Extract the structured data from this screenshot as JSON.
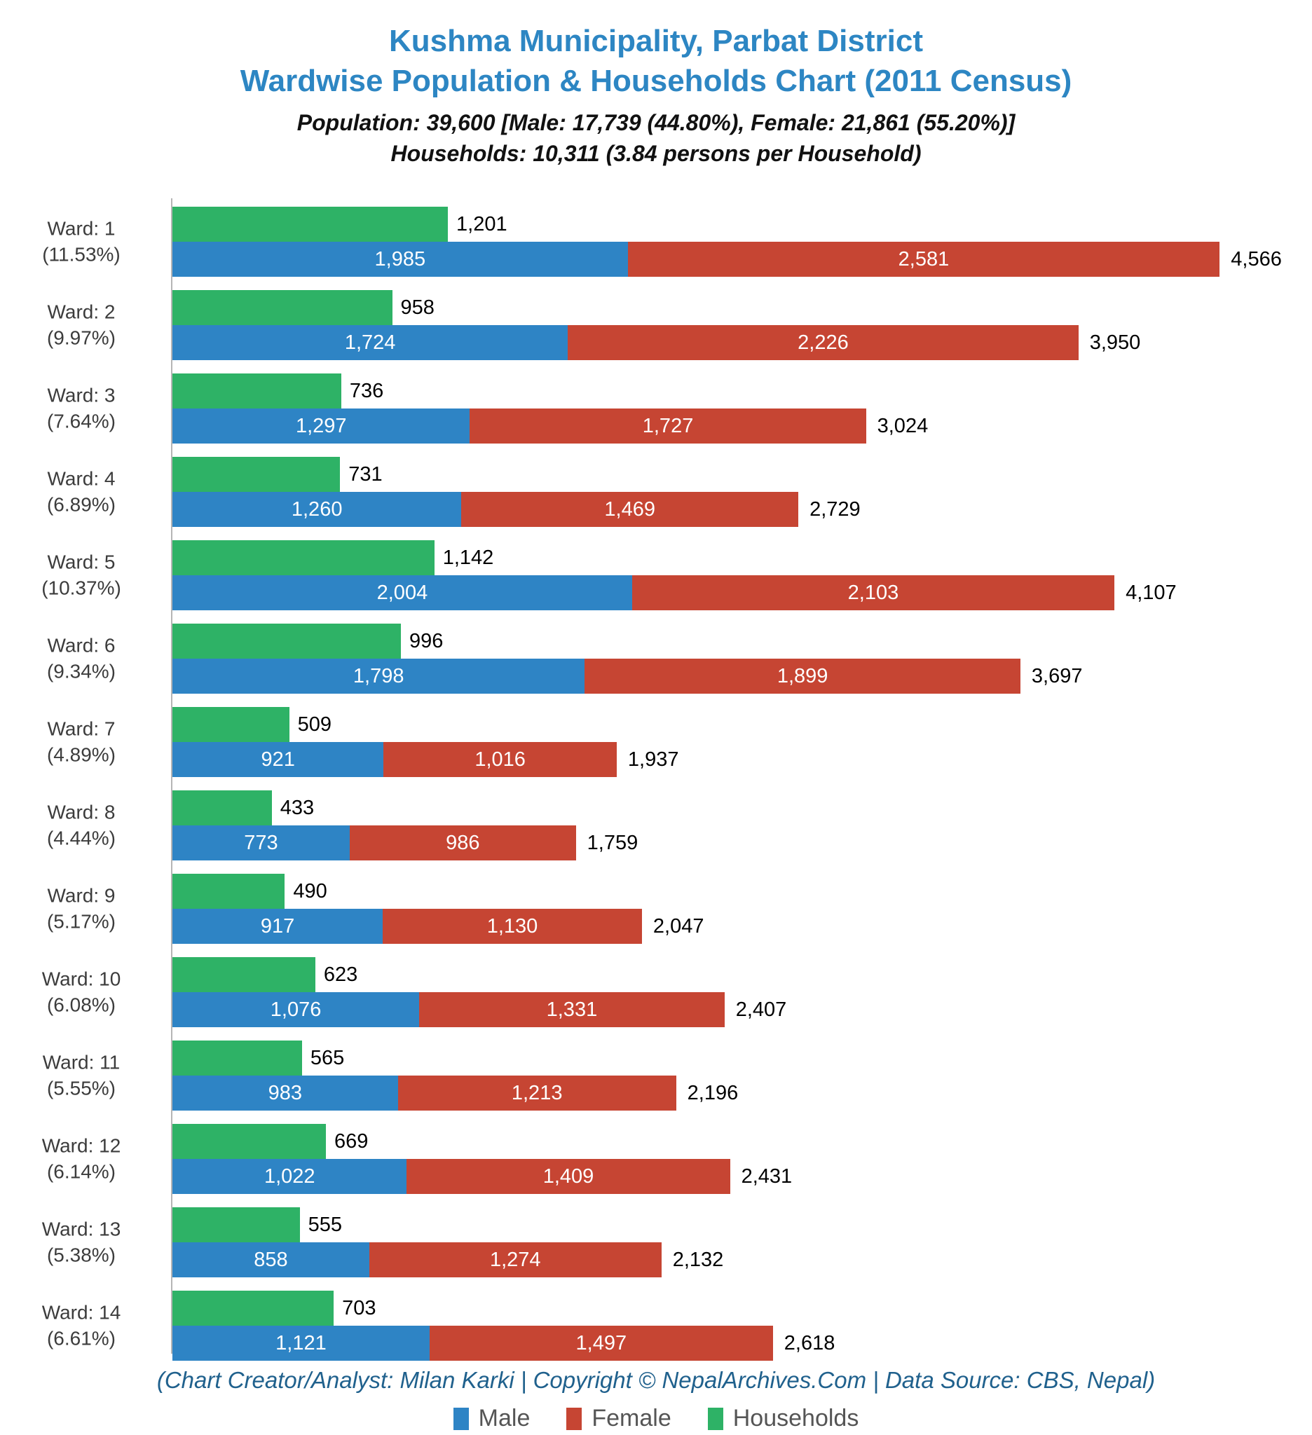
{
  "header": {
    "title_line1": "Kushma Municipality, Parbat District",
    "title_line2": "Wardwise Population & Households Chart (2011 Census)",
    "subtitle_line1": "Population: 39,600 [Male: 17,739 (44.80%), Female: 21,861 (55.20%)]",
    "subtitle_line2": "Households: 10,311 (3.84 persons per Household)"
  },
  "footer": {
    "credit": "(Chart Creator/Analyst: Milan Karki | Copyright © NepalArchives.Com | Data Source: CBS, Nepal)"
  },
  "colors": {
    "male": "#2e84c5",
    "female": "#c64533",
    "households": "#2eb266",
    "title": "#2d86c3",
    "footer_text": "#20618d",
    "axis": "#b5b5b5",
    "ward_label": "#3c3c3c",
    "legend_text": "#555555"
  },
  "legend": [
    {
      "label": "Male",
      "color_key": "male"
    },
    {
      "label": "Female",
      "color_key": "female"
    },
    {
      "label": "Households",
      "color_key": "households"
    }
  ],
  "chart_data": {
    "type": "bar",
    "orientation": "horizontal",
    "stacked_series": [
      "Male",
      "Female"
    ],
    "separate_series": [
      "Households"
    ],
    "legend_position": "bottom",
    "x_max": 4566,
    "categories": [
      "Ward: 1 (11.53%)",
      "Ward: 2 (9.97%)",
      "Ward: 3 (7.64%)",
      "Ward: 4 (6.89%)",
      "Ward: 5 (10.37%)",
      "Ward: 6 (9.34%)",
      "Ward: 7 (4.89%)",
      "Ward: 8 (4.44%)",
      "Ward: 9 (5.17%)",
      "Ward: 10 (6.08%)",
      "Ward: 11 (5.55%)",
      "Ward: 12 (6.14%)",
      "Ward: 13 (5.38%)",
      "Ward: 14 (6.61%)"
    ],
    "series": [
      {
        "name": "Male",
        "values": [
          1985,
          1724,
          1297,
          1260,
          2004,
          1798,
          921,
          773,
          917,
          1076,
          983,
          1022,
          858,
          1121
        ]
      },
      {
        "name": "Female",
        "values": [
          2581,
          2226,
          1727,
          1469,
          2103,
          1899,
          1016,
          986,
          1130,
          1331,
          1213,
          1409,
          1274,
          1497
        ]
      },
      {
        "name": "Households",
        "values": [
          1201,
          958,
          736,
          731,
          1142,
          996,
          509,
          433,
          490,
          623,
          565,
          669,
          555,
          703
        ]
      }
    ],
    "wards": [
      {
        "label": "Ward: 1",
        "percent": "(11.53%)",
        "households": 1201,
        "male": 1985,
        "female": 2581,
        "total": 4566
      },
      {
        "label": "Ward: 2",
        "percent": "(9.97%)",
        "households": 958,
        "male": 1724,
        "female": 2226,
        "total": 3950
      },
      {
        "label": "Ward: 3",
        "percent": "(7.64%)",
        "households": 736,
        "male": 1297,
        "female": 1727,
        "total": 3024
      },
      {
        "label": "Ward: 4",
        "percent": "(6.89%)",
        "households": 731,
        "male": 1260,
        "female": 1469,
        "total": 2729
      },
      {
        "label": "Ward: 5",
        "percent": "(10.37%)",
        "households": 1142,
        "male": 2004,
        "female": 2103,
        "total": 4107
      },
      {
        "label": "Ward: 6",
        "percent": "(9.34%)",
        "households": 996,
        "male": 1798,
        "female": 1899,
        "total": 3697
      },
      {
        "label": "Ward: 7",
        "percent": "(4.89%)",
        "households": 509,
        "male": 921,
        "female": 1016,
        "total": 1937
      },
      {
        "label": "Ward: 8",
        "percent": "(4.44%)",
        "households": 433,
        "male": 773,
        "female": 986,
        "total": 1759
      },
      {
        "label": "Ward: 9",
        "percent": "(5.17%)",
        "households": 490,
        "male": 917,
        "female": 1130,
        "total": 2047
      },
      {
        "label": "Ward: 10",
        "percent": "(6.08%)",
        "households": 623,
        "male": 1076,
        "female": 1331,
        "total": 2407
      },
      {
        "label": "Ward: 11",
        "percent": "(5.55%)",
        "households": 565,
        "male": 983,
        "female": 1213,
        "total": 2196
      },
      {
        "label": "Ward: 12",
        "percent": "(6.14%)",
        "households": 669,
        "male": 1022,
        "female": 1409,
        "total": 2431
      },
      {
        "label": "Ward: 13",
        "percent": "(5.38%)",
        "households": 555,
        "male": 858,
        "female": 1274,
        "total": 2132
      },
      {
        "label": "Ward: 14",
        "percent": "(6.61%)",
        "households": 703,
        "male": 1121,
        "female": 1497,
        "total": 2618
      }
    ]
  }
}
